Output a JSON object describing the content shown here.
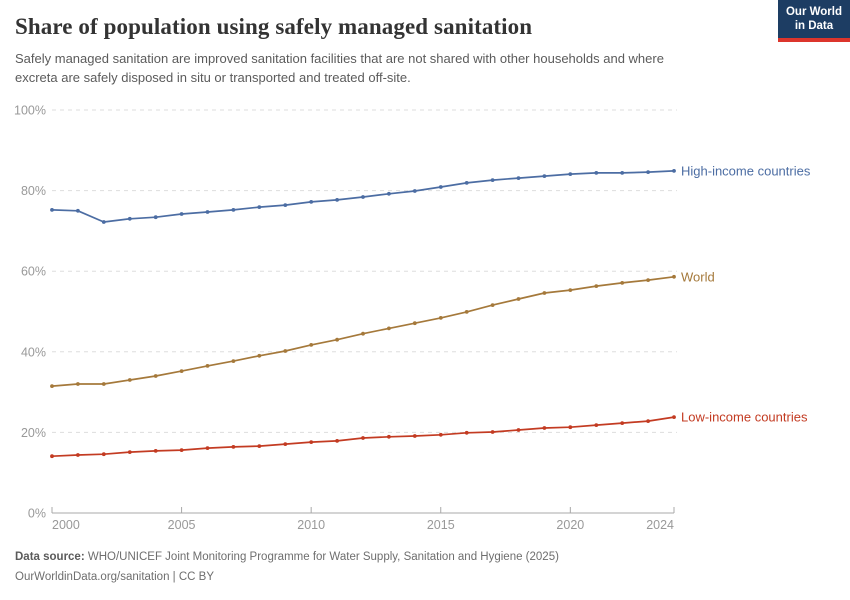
{
  "header": {
    "title": "Share of population using safely managed sanitation",
    "subtitle": "Safely managed sanitation are improved sanitation facilities that are not shared with other households and where excreta are safely disposed in situ or transported and treated off-site.",
    "logo": {
      "line1": "Our World",
      "line2": "in Data",
      "bg_color": "#1d3d63",
      "stripe_color": "#dc352c"
    }
  },
  "chart_data": {
    "type": "line",
    "title": "Share of population using safely managed sanitation",
    "xlabel": "",
    "ylabel": "",
    "x": [
      2000,
      2001,
      2002,
      2003,
      2004,
      2005,
      2006,
      2007,
      2008,
      2009,
      2010,
      2011,
      2012,
      2013,
      2014,
      2015,
      2016,
      2017,
      2018,
      2019,
      2020,
      2021,
      2022,
      2023,
      2024
    ],
    "series": [
      {
        "name": "High-income countries",
        "color": "#4c6da3",
        "values": [
          75.2,
          75.0,
          72.2,
          73.0,
          73.4,
          74.2,
          74.7,
          75.2,
          75.9,
          76.4,
          77.2,
          77.7,
          78.4,
          79.2,
          79.9,
          80.9,
          81.9,
          82.6,
          83.1,
          83.6,
          84.1,
          84.4,
          84.4,
          84.6,
          84.9
        ]
      },
      {
        "name": "World",
        "color": "#a5793b",
        "values": [
          31.5,
          32.0,
          32.0,
          33.0,
          34.0,
          35.2,
          36.5,
          37.7,
          39.0,
          40.2,
          41.7,
          43.0,
          44.5,
          45.8,
          47.1,
          48.4,
          49.9,
          51.6,
          53.1,
          54.6,
          55.3,
          56.3,
          57.1,
          57.8,
          58.6
        ]
      },
      {
        "name": "Low-income countries",
        "color": "#c33b22",
        "values": [
          14.1,
          14.4,
          14.6,
          15.1,
          15.4,
          15.6,
          16.1,
          16.4,
          16.6,
          17.1,
          17.6,
          17.9,
          18.6,
          18.9,
          19.1,
          19.4,
          19.9,
          20.1,
          20.6,
          21.1,
          21.3,
          21.8,
          22.3,
          22.8,
          23.8
        ]
      }
    ],
    "ylim": [
      0,
      100
    ],
    "yticks": [
      0,
      20,
      40,
      60,
      80,
      100
    ],
    "ytick_suffix": "%",
    "xticks": [
      2000,
      2005,
      2010,
      2015,
      2020,
      2024
    ],
    "grid": "horizontal-dashed",
    "legend_position": "end-of-line-labels",
    "marker": "dot"
  },
  "style": {
    "grid_color": "#dddddd",
    "axis_color": "#a8a8a8",
    "tick_label_color": "#999999"
  },
  "footer": {
    "source_label": "Data source:",
    "source_text": "WHO/UNICEF Joint Monitoring Programme for Water Supply, Sanitation and Hygiene (2025)",
    "license_line": "OurWorldinData.org/sanitation | CC BY"
  }
}
